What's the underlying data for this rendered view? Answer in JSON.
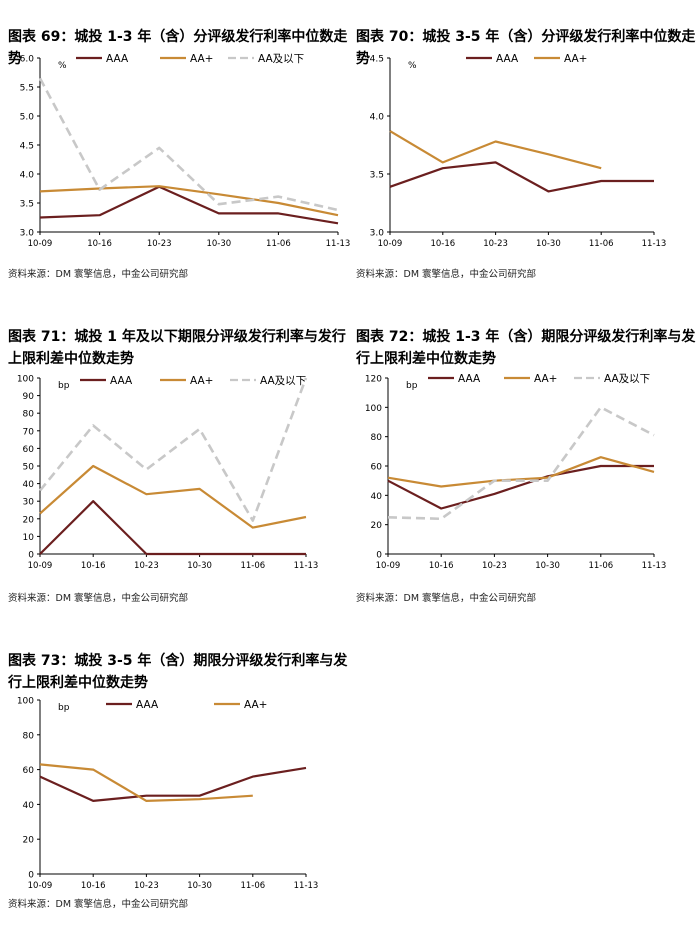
{
  "source_note": "资料来源：DM 寰擎信息，中金公司研究部",
  "chart_data": [
    {
      "id": "c69",
      "type": "line",
      "title": "图表 69：城投 1-3 年（含）分评级发行利率中位数走势",
      "unit": "%",
      "categories": [
        "10-09",
        "10-16",
        "10-23",
        "10-30",
        "11-06",
        "11-13"
      ],
      "ylim": [
        3.0,
        6.0
      ],
      "yticks": [
        "3.0",
        "3.5",
        "4.0",
        "4.5",
        "5.0",
        "5.5",
        "6.0"
      ],
      "series": [
        {
          "name": "AAA",
          "color": "#6b1f1f",
          "dash": false,
          "values": [
            3.25,
            3.29,
            3.78,
            3.32,
            3.32,
            3.15
          ]
        },
        {
          "name": "AA+",
          "color": "#c88a35",
          "dash": false,
          "values": [
            3.7,
            3.75,
            3.79,
            3.65,
            3.5,
            3.29
          ]
        },
        {
          "name": "AA及以下",
          "color": "#c8c8c8",
          "dash": true,
          "values": [
            5.65,
            3.73,
            4.45,
            3.48,
            3.61,
            3.38
          ]
        }
      ]
    },
    {
      "id": "c70",
      "type": "line",
      "title": "图表 70：城投 3-5 年（含）分评级发行利率中位数走势",
      "unit": "%",
      "categories": [
        "10-09",
        "10-16",
        "10-23",
        "10-30",
        "11-06",
        "11-13"
      ],
      "ylim": [
        3.0,
        4.5
      ],
      "yticks": [
        "3.0",
        "3.5",
        "4.0",
        "4.5"
      ],
      "series": [
        {
          "name": "AAA",
          "color": "#6b1f1f",
          "dash": false,
          "values": [
            3.39,
            3.55,
            3.6,
            3.35,
            3.44,
            3.44
          ]
        },
        {
          "name": "AA+",
          "color": "#c88a35",
          "dash": false,
          "values": [
            3.87,
            3.6,
            3.78,
            3.67,
            3.55,
            null
          ]
        }
      ]
    },
    {
      "id": "c71",
      "type": "line",
      "title": "图表 71：城投 1 年及以下期限分评级发行利率与发行上限利差中位数走势",
      "unit": "bp",
      "categories": [
        "10-09",
        "10-16",
        "10-23",
        "10-30",
        "11-06",
        "11-13"
      ],
      "ylim": [
        0,
        100
      ],
      "yticks": [
        "0",
        "10",
        "20",
        "30",
        "40",
        "50",
        "60",
        "70",
        "80",
        "90",
        "100"
      ],
      "series": [
        {
          "name": "AAA",
          "color": "#6b1f1f",
          "dash": false,
          "values": [
            0,
            30,
            0,
            0,
            0,
            0
          ]
        },
        {
          "name": "AA+",
          "color": "#c88a35",
          "dash": false,
          "values": [
            23,
            50,
            34,
            37,
            15,
            21
          ]
        },
        {
          "name": "AA及以下",
          "color": "#c8c8c8",
          "dash": true,
          "values": [
            36,
            73,
            48,
            71,
            19,
            100
          ]
        }
      ]
    },
    {
      "id": "c72",
      "type": "line",
      "title": "图表 72：城投 1-3 年（含）期限分评级发行利率与发行上限利差中位数走势",
      "unit": "bp",
      "categories": [
        "10-09",
        "10-16",
        "10-23",
        "10-30",
        "11-06",
        "11-13"
      ],
      "ylim": [
        0,
        120
      ],
      "yticks": [
        "0",
        "20",
        "40",
        "60",
        "80",
        "100",
        "120"
      ],
      "series": [
        {
          "name": "AAA",
          "color": "#6b1f1f",
          "dash": false,
          "values": [
            50,
            31,
            41,
            53,
            60,
            60
          ]
        },
        {
          "name": "AA+",
          "color": "#c88a35",
          "dash": false,
          "values": [
            52,
            46,
            50,
            52,
            66,
            56
          ]
        },
        {
          "name": "AA及以下",
          "color": "#c8c8c8",
          "dash": true,
          "values": [
            25,
            24,
            50,
            50,
            100,
            81
          ]
        }
      ]
    },
    {
      "id": "c73",
      "type": "line",
      "title": "图表 73：城投 3-5 年（含）期限分评级发行利率与发行上限利差中位数走势",
      "unit": "bp",
      "categories": [
        "10-09",
        "10-16",
        "10-23",
        "10-30",
        "11-06",
        "11-13"
      ],
      "ylim": [
        0,
        100
      ],
      "yticks": [
        "0",
        "20",
        "40",
        "60",
        "80",
        "100"
      ],
      "series": [
        {
          "name": "AAA",
          "color": "#6b1f1f",
          "dash": false,
          "values": [
            56,
            42,
            45,
            45,
            56,
            61
          ]
        },
        {
          "name": "AA+",
          "color": "#c88a35",
          "dash": false,
          "values": [
            63,
            60,
            42,
            43,
            45,
            null
          ]
        }
      ]
    }
  ]
}
